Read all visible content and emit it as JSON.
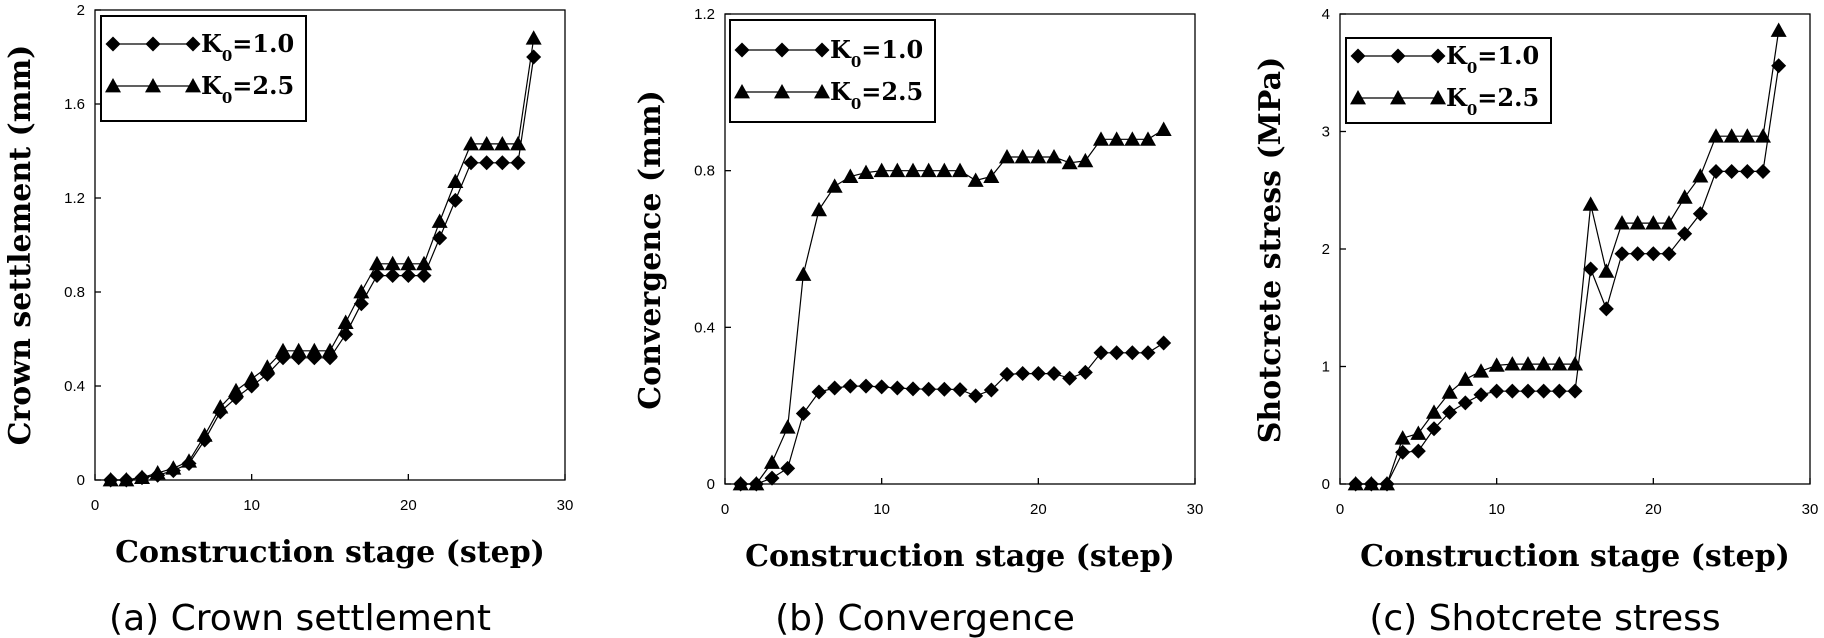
{
  "chart_data": [
    {
      "type": "line",
      "caption": "(a) Crown settlement",
      "xlabel": "Construction stage (step)",
      "ylabel": "Crown settlement (mm)",
      "xlim": [
        0,
        30
      ],
      "ylim": [
        0,
        2
      ],
      "xticks": [
        "0",
        "10",
        "20",
        "30"
      ],
      "yticks": [
        "0",
        "0.4",
        "0.8",
        "1.2",
        "1.6",
        "2"
      ],
      "legend_position": "top-left",
      "grid": false,
      "x": [
        1,
        2,
        3,
        4,
        5,
        6,
        7,
        8,
        9,
        10,
        11,
        12,
        13,
        14,
        15,
        16,
        17,
        18,
        19,
        20,
        21,
        22,
        23,
        24,
        25,
        26,
        27,
        28
      ],
      "series": [
        {
          "name": "K0=1.0",
          "marker": "diamond",
          "values": [
            0,
            0,
            0.01,
            0.02,
            0.04,
            0.07,
            0.17,
            0.29,
            0.35,
            0.4,
            0.45,
            0.52,
            0.52,
            0.52,
            0.52,
            0.62,
            0.75,
            0.87,
            0.87,
            0.87,
            0.87,
            1.03,
            1.19,
            1.35,
            1.35,
            1.35,
            1.35,
            1.8
          ]
        },
        {
          "name": "K0=2.5",
          "marker": "triangle",
          "values": [
            0,
            0,
            0.01,
            0.03,
            0.05,
            0.08,
            0.19,
            0.31,
            0.38,
            0.43,
            0.48,
            0.55,
            0.55,
            0.55,
            0.55,
            0.67,
            0.8,
            0.92,
            0.92,
            0.92,
            0.92,
            1.1,
            1.27,
            1.43,
            1.43,
            1.43,
            1.43,
            1.88
          ]
        }
      ]
    },
    {
      "type": "line",
      "caption": "(b) Convergence",
      "xlabel": "Construction stage (step)",
      "ylabel": "Convergence (mm)",
      "xlim": [
        0,
        30
      ],
      "ylim": [
        0,
        1.2
      ],
      "xticks": [
        "0",
        "10",
        "20",
        "30"
      ],
      "yticks": [
        "0",
        "0.4",
        "0.8",
        "1.2"
      ],
      "legend_position": "top-left",
      "grid": false,
      "x": [
        1,
        2,
        3,
        4,
        5,
        6,
        7,
        8,
        9,
        10,
        11,
        12,
        13,
        14,
        15,
        16,
        17,
        18,
        19,
        20,
        21,
        22,
        23,
        24,
        25,
        26,
        27,
        28
      ],
      "series": [
        {
          "name": "K0=1.0",
          "marker": "diamond",
          "values": [
            0,
            0,
            0.015,
            0.04,
            0.18,
            0.235,
            0.245,
            0.25,
            0.25,
            0.248,
            0.245,
            0.243,
            0.242,
            0.242,
            0.241,
            0.225,
            0.24,
            0.28,
            0.282,
            0.282,
            0.282,
            0.27,
            0.285,
            0.335,
            0.335,
            0.335,
            0.335,
            0.36
          ]
        },
        {
          "name": "K0=2.5",
          "marker": "triangle",
          "values": [
            0,
            0,
            0.055,
            0.145,
            0.535,
            0.7,
            0.76,
            0.785,
            0.795,
            0.8,
            0.8,
            0.8,
            0.8,
            0.8,
            0.8,
            0.775,
            0.785,
            0.835,
            0.835,
            0.835,
            0.835,
            0.82,
            0.825,
            0.88,
            0.88,
            0.88,
            0.88,
            0.905
          ]
        }
      ]
    },
    {
      "type": "line",
      "caption": "(c) Shotcrete stress",
      "xlabel": "Construction stage (step)",
      "ylabel": "Shotcrete stress (MPa)",
      "xlim": [
        0,
        30
      ],
      "ylim": [
        0,
        4
      ],
      "xticks": [
        "0",
        "10",
        "20",
        "30"
      ],
      "yticks": [
        "0",
        "1",
        "2",
        "3",
        "4"
      ],
      "legend_position": "top-left",
      "grid": false,
      "x": [
        1,
        2,
        3,
        4,
        5,
        6,
        7,
        8,
        9,
        10,
        11,
        12,
        13,
        14,
        15,
        16,
        17,
        18,
        19,
        20,
        21,
        22,
        23,
        24,
        25,
        26,
        27,
        28
      ],
      "series": [
        {
          "name": "K0=1.0",
          "marker": "diamond",
          "values": [
            0,
            0,
            0,
            0.27,
            0.28,
            0.47,
            0.61,
            0.69,
            0.76,
            0.79,
            0.79,
            0.79,
            0.79,
            0.79,
            0.79,
            1.83,
            1.49,
            1.96,
            1.96,
            1.96,
            1.96,
            2.13,
            2.3,
            2.66,
            2.66,
            2.66,
            2.66,
            3.56
          ]
        },
        {
          "name": "K0=2.5",
          "marker": "triangle",
          "values": [
            0,
            0,
            0,
            0.39,
            0.43,
            0.61,
            0.78,
            0.89,
            0.96,
            1.01,
            1.02,
            1.02,
            1.02,
            1.02,
            1.02,
            2.38,
            1.81,
            2.22,
            2.22,
            2.22,
            2.22,
            2.44,
            2.62,
            2.96,
            2.96,
            2.96,
            2.96,
            3.86
          ]
        }
      ]
    }
  ]
}
